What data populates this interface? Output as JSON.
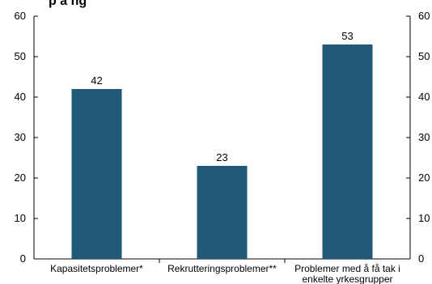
{
  "chart_data": {
    "type": "bar",
    "title": "p å              ng",
    "categories": [
      "Kapasitetsproblemer*",
      "Rekrutteringsproblemer**",
      "Problemer med å få tak i enkelte yrkesgrupper"
    ],
    "category_lines": [
      [
        "Kapasitetsproblemer*"
      ],
      [
        "Rekrutteringsproblemer**"
      ],
      [
        "Problemer med å få tak i",
        "enkelte yrkesgrupper"
      ]
    ],
    "values": [
      42,
      23,
      53
    ],
    "ylim": [
      0,
      60
    ],
    "yticks": [
      0,
      10,
      20,
      30,
      40,
      50,
      60
    ],
    "dual_y_axis": true,
    "grid": false,
    "bar_color": "#215a78"
  }
}
